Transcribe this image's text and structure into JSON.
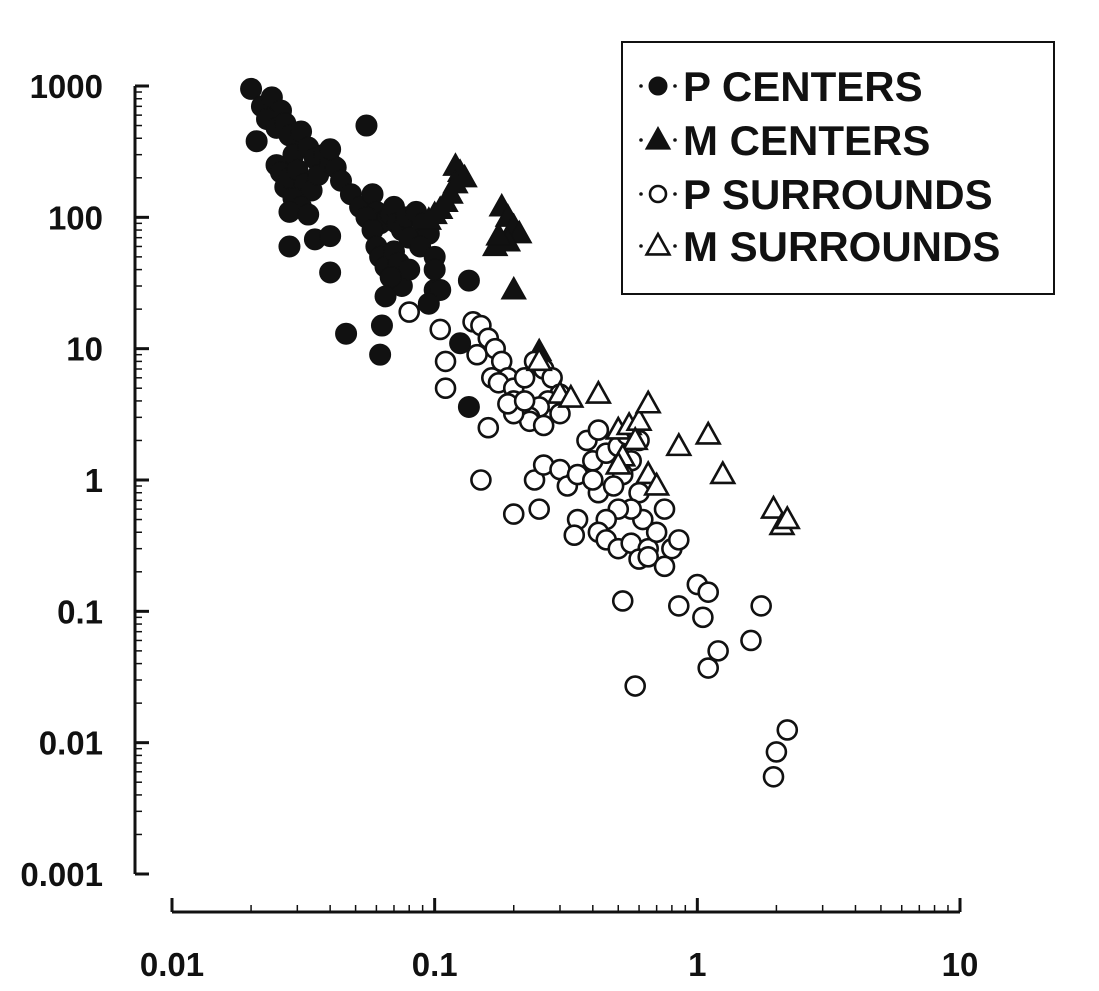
{
  "chart_data": {
    "type": "scatter",
    "title": "",
    "xlabel": "",
    "ylabel": "",
    "x_scale": "log",
    "y_scale": "log",
    "xlim": [
      0.01,
      10
    ],
    "ylim": [
      0.001,
      1000
    ],
    "x_ticks": [
      0.01,
      0.1,
      1,
      10
    ],
    "x_tick_labels": [
      "0.01",
      "0.1",
      "1",
      "10"
    ],
    "y_ticks": [
      0.001,
      0.01,
      0.1,
      1,
      10,
      100,
      1000
    ],
    "y_tick_labels": [
      "0.001",
      "0.01",
      "0.1",
      "1",
      "10",
      "100",
      "1000"
    ],
    "grid": false,
    "legend_position": "top-right",
    "series": [
      {
        "name": "P CENTERS",
        "marker": "filled-circle",
        "points": [
          [
            0.02,
            950
          ],
          [
            0.022,
            700
          ],
          [
            0.024,
            820
          ],
          [
            0.026,
            650
          ],
          [
            0.021,
            380
          ],
          [
            0.023,
            560
          ],
          [
            0.025,
            480
          ],
          [
            0.027,
            520
          ],
          [
            0.028,
            420
          ],
          [
            0.03,
            360
          ],
          [
            0.029,
            300
          ],
          [
            0.031,
            450
          ],
          [
            0.033,
            340
          ],
          [
            0.035,
            280
          ],
          [
            0.025,
            250
          ],
          [
            0.026,
            220
          ],
          [
            0.027,
            170
          ],
          [
            0.028,
            200
          ],
          [
            0.03,
            230
          ],
          [
            0.032,
            180
          ],
          [
            0.034,
            160
          ],
          [
            0.036,
            210
          ],
          [
            0.038,
            300
          ],
          [
            0.04,
            260
          ],
          [
            0.042,
            240
          ],
          [
            0.044,
            190
          ],
          [
            0.048,
            150
          ],
          [
            0.052,
            120
          ],
          [
            0.055,
            500
          ],
          [
            0.04,
            330
          ],
          [
            0.029,
            140
          ],
          [
            0.031,
            120
          ],
          [
            0.028,
            110
          ],
          [
            0.033,
            105
          ],
          [
            0.028,
            60
          ],
          [
            0.035,
            68
          ],
          [
            0.04,
            72
          ],
          [
            0.04,
            38
          ],
          [
            0.046,
            13
          ],
          [
            0.058,
            150
          ],
          [
            0.06,
            110
          ],
          [
            0.062,
            90
          ],
          [
            0.065,
            95
          ],
          [
            0.068,
            105
          ],
          [
            0.07,
            120
          ],
          [
            0.072,
            90
          ],
          [
            0.075,
            80
          ],
          [
            0.078,
            100
          ],
          [
            0.08,
            70
          ],
          [
            0.055,
            100
          ],
          [
            0.058,
            80
          ],
          [
            0.06,
            60
          ],
          [
            0.062,
            50
          ],
          [
            0.065,
            42
          ],
          [
            0.07,
            55
          ],
          [
            0.073,
            45
          ],
          [
            0.075,
            30
          ],
          [
            0.085,
            110
          ],
          [
            0.09,
            90
          ],
          [
            0.095,
            75
          ],
          [
            0.088,
            60
          ],
          [
            0.1,
            50
          ],
          [
            0.08,
            40
          ],
          [
            0.068,
            35
          ],
          [
            0.065,
            25
          ],
          [
            0.063,
            15
          ],
          [
            0.062,
            9
          ],
          [
            0.1,
            28
          ],
          [
            0.105,
            28
          ],
          [
            0.1,
            40
          ],
          [
            0.095,
            22
          ],
          [
            0.135,
            33
          ],
          [
            0.125,
            11
          ],
          [
            0.135,
            3.6
          ]
        ]
      },
      {
        "name": "M CENTERS",
        "marker": "filled-triangle",
        "points": [
          [
            0.12,
            245
          ],
          [
            0.125,
            220
          ],
          [
            0.13,
            200
          ],
          [
            0.12,
            180
          ],
          [
            0.115,
            150
          ],
          [
            0.11,
            130
          ],
          [
            0.105,
            115
          ],
          [
            0.1,
            105
          ],
          [
            0.095,
            95
          ],
          [
            0.18,
            120
          ],
          [
            0.19,
            100
          ],
          [
            0.2,
            85
          ],
          [
            0.21,
            75
          ],
          [
            0.19,
            65
          ],
          [
            0.17,
            60
          ],
          [
            0.175,
            72
          ],
          [
            0.2,
            28
          ],
          [
            0.25,
            9.5
          ]
        ]
      },
      {
        "name": "P SURROUNDS",
        "marker": "open-circle",
        "points": [
          [
            0.08,
            19
          ],
          [
            0.105,
            14
          ],
          [
            0.11,
            8
          ],
          [
            0.14,
            16
          ],
          [
            0.15,
            15
          ],
          [
            0.145,
            9
          ],
          [
            0.16,
            12
          ],
          [
            0.17,
            10
          ],
          [
            0.18,
            8
          ],
          [
            0.19,
            6
          ],
          [
            0.165,
            6
          ],
          [
            0.175,
            5.5
          ],
          [
            0.2,
            5
          ],
          [
            0.22,
            6
          ],
          [
            0.24,
            8
          ],
          [
            0.26,
            7
          ],
          [
            0.28,
            6
          ],
          [
            0.3,
            4.5
          ],
          [
            0.27,
            4
          ],
          [
            0.25,
            3.6
          ],
          [
            0.23,
            3
          ],
          [
            0.21,
            3.5
          ],
          [
            0.2,
            4
          ],
          [
            0.23,
            2.8
          ],
          [
            0.2,
            3.2
          ],
          [
            0.19,
            3.8
          ],
          [
            0.22,
            4
          ],
          [
            0.26,
            2.6
          ],
          [
            0.3,
            3.2
          ],
          [
            0.16,
            2.5
          ],
          [
            0.15,
            1
          ],
          [
            0.2,
            0.55
          ],
          [
            0.25,
            0.6
          ],
          [
            0.24,
            1
          ],
          [
            0.26,
            1.3
          ],
          [
            0.3,
            1.2
          ],
          [
            0.32,
            0.9
          ],
          [
            0.35,
            1.1
          ],
          [
            0.4,
            1.4
          ],
          [
            0.42,
            0.8
          ],
          [
            0.4,
            1
          ],
          [
            0.38,
            2
          ],
          [
            0.42,
            2.4
          ],
          [
            0.45,
            1.6
          ],
          [
            0.5,
            1.8
          ],
          [
            0.54,
            2.2
          ],
          [
            0.6,
            2
          ],
          [
            0.56,
            1.4
          ],
          [
            0.52,
            1.1
          ],
          [
            0.48,
            0.9
          ],
          [
            0.6,
            0.8
          ],
          [
            0.62,
            0.5
          ],
          [
            0.56,
            0.6
          ],
          [
            0.5,
            0.6
          ],
          [
            0.45,
            0.5
          ],
          [
            0.42,
            0.4
          ],
          [
            0.35,
            0.5
          ],
          [
            0.34,
            0.38
          ],
          [
            0.45,
            0.35
          ],
          [
            0.5,
            0.3
          ],
          [
            0.56,
            0.33
          ],
          [
            0.65,
            0.3
          ],
          [
            0.7,
            0.4
          ],
          [
            0.75,
            0.6
          ],
          [
            0.8,
            0.3
          ],
          [
            0.85,
            0.35
          ],
          [
            0.6,
            0.25
          ],
          [
            0.65,
            0.26
          ],
          [
            0.75,
            0.22
          ],
          [
            0.11,
            5
          ],
          [
            0.52,
            0.12
          ],
          [
            0.58,
            0.027
          ],
          [
            0.85,
            0.11
          ],
          [
            1.0,
            0.16
          ],
          [
            1.05,
            0.09
          ],
          [
            1.1,
            0.14
          ],
          [
            1.2,
            0.05
          ],
          [
            1.1,
            0.037
          ],
          [
            1.6,
            0.06
          ],
          [
            1.75,
            0.11
          ],
          [
            2.2,
            0.0125
          ],
          [
            2.0,
            0.0085
          ],
          [
            1.95,
            0.0055
          ]
        ]
      },
      {
        "name": "M SURROUNDS",
        "marker": "open-triangle",
        "points": [
          [
            0.25,
            8
          ],
          [
            0.3,
            4.5
          ],
          [
            0.33,
            4.2
          ],
          [
            0.42,
            4.5
          ],
          [
            0.5,
            2.4
          ],
          [
            0.55,
            2.6
          ],
          [
            0.6,
            2.8
          ],
          [
            0.65,
            3.8
          ],
          [
            0.58,
            2
          ],
          [
            0.52,
            1.5
          ],
          [
            0.5,
            1.3
          ],
          [
            0.65,
            1.1
          ],
          [
            0.7,
            0.9
          ],
          [
            0.85,
            1.8
          ],
          [
            1.1,
            2.2
          ],
          [
            1.25,
            1.1
          ],
          [
            1.95,
            0.6
          ],
          [
            2.1,
            0.45
          ],
          [
            2.2,
            0.5
          ]
        ]
      }
    ]
  }
}
